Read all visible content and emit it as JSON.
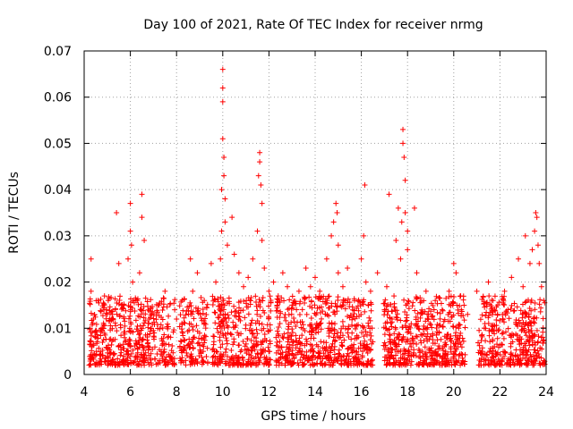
{
  "chart_data": {
    "type": "scatter",
    "title": "Day 100 of 2021, Rate Of TEC Index for receiver nrmg",
    "xlabel": "GPS time / hours",
    "ylabel": "ROTI / TECUs",
    "xlim": [
      4,
      24
    ],
    "ylim": [
      0,
      0.07
    ],
    "xticks": [
      4,
      6,
      8,
      10,
      12,
      14,
      16,
      18,
      20,
      22,
      24
    ],
    "yticks": [
      0,
      0.01,
      0.02,
      0.03,
      0.04,
      0.05,
      0.06,
      0.07
    ],
    "xtick_labels": [
      "4",
      "6",
      "8",
      "10",
      "12",
      "14",
      "16",
      "18",
      "20",
      "22",
      "24"
    ],
    "ytick_labels": [
      "0",
      "0.01",
      "0.02",
      "0.03",
      "0.04",
      "0.05",
      "0.06",
      "0.07"
    ],
    "grid": true,
    "marker": "+",
    "color": "#ff0000",
    "series": [
      {
        "name": "ROTI",
        "x": [
          4.3,
          4.3,
          4.4,
          4.5,
          4.6,
          4.8,
          5.0,
          5.4,
          5.5,
          5.6,
          5.9,
          6.0,
          6.0,
          6.05,
          6.1,
          6.3,
          6.4,
          6.5,
          6.5,
          6.6,
          6.8,
          7.2,
          7.5,
          8.0,
          8.6,
          8.7,
          8.9,
          9.2,
          9.5,
          9.7,
          9.9,
          9.95,
          9.95,
          10.0,
          10.0,
          10.0,
          10.0,
          10.05,
          10.05,
          10.1,
          10.1,
          10.2,
          10.4,
          10.5,
          10.7,
          10.9,
          11.1,
          11.3,
          11.5,
          11.55,
          11.6,
          11.6,
          11.65,
          11.7,
          11.7,
          11.8,
          12.0,
          12.2,
          12.4,
          12.6,
          12.8,
          13.0,
          13.3,
          13.6,
          13.8,
          14.0,
          14.2,
          14.5,
          14.7,
          14.8,
          14.9,
          14.95,
          15.0,
          15.0,
          15.2,
          15.4,
          15.7,
          16.0,
          16.1,
          16.15,
          16.2,
          16.4,
          16.7,
          17.0,
          17.1,
          17.2,
          17.5,
          17.6,
          17.7,
          17.75,
          17.8,
          17.8,
          17.85,
          17.9,
          17.9,
          18.0,
          18.0,
          18.3,
          18.4,
          18.8,
          19.2,
          19.5,
          19.8,
          20.0,
          20.1,
          20.3,
          20.6,
          21.0,
          21.5,
          21.7,
          21.9,
          22.2,
          22.5,
          22.8,
          23.0,
          23.1,
          23.3,
          23.4,
          23.5,
          23.55,
          23.6,
          23.65,
          23.7,
          23.8,
          23.9
        ],
        "y": [
          0.025,
          0.018,
          0.012,
          0.008,
          0.016,
          0.01,
          0.013,
          0.035,
          0.024,
          0.015,
          0.025,
          0.037,
          0.031,
          0.028,
          0.02,
          0.016,
          0.022,
          0.039,
          0.034,
          0.029,
          0.012,
          0.015,
          0.018,
          0.012,
          0.025,
          0.018,
          0.022,
          0.016,
          0.024,
          0.02,
          0.025,
          0.031,
          0.04,
          0.066,
          0.062,
          0.059,
          0.051,
          0.047,
          0.043,
          0.038,
          0.033,
          0.028,
          0.034,
          0.026,
          0.022,
          0.019,
          0.021,
          0.025,
          0.031,
          0.043,
          0.048,
          0.046,
          0.041,
          0.037,
          0.029,
          0.023,
          0.018,
          0.02,
          0.017,
          0.022,
          0.019,
          0.015,
          0.018,
          0.023,
          0.019,
          0.021,
          0.018,
          0.025,
          0.03,
          0.033,
          0.037,
          0.035,
          0.028,
          0.022,
          0.019,
          0.023,
          0.016,
          0.025,
          0.03,
          0.041,
          0.02,
          0.018,
          0.022,
          0.014,
          0.019,
          0.039,
          0.029,
          0.036,
          0.025,
          0.033,
          0.053,
          0.05,
          0.047,
          0.042,
          0.035,
          0.031,
          0.027,
          0.036,
          0.022,
          0.018,
          0.016,
          0.014,
          0.018,
          0.024,
          0.022,
          0.017,
          0.013,
          0.018,
          0.02,
          0.016,
          0.013,
          0.018,
          0.021,
          0.025,
          0.019,
          0.03,
          0.024,
          0.027,
          0.031,
          0.035,
          0.034,
          0.028,
          0.024,
          0.019,
          0.016
        ]
      }
    ],
    "density_band": {
      "description": "dense cloud of points",
      "typical_range": [
        0.002,
        0.017
      ],
      "gaps_hours": [
        [
          7.95,
          8.1
        ],
        [
          9.35,
          9.55
        ],
        [
          12.1,
          12.3
        ],
        [
          16.5,
          16.95
        ],
        [
          20.5,
          21.05
        ]
      ],
      "active_hours": [
        4.2,
        23.95
      ]
    }
  }
}
